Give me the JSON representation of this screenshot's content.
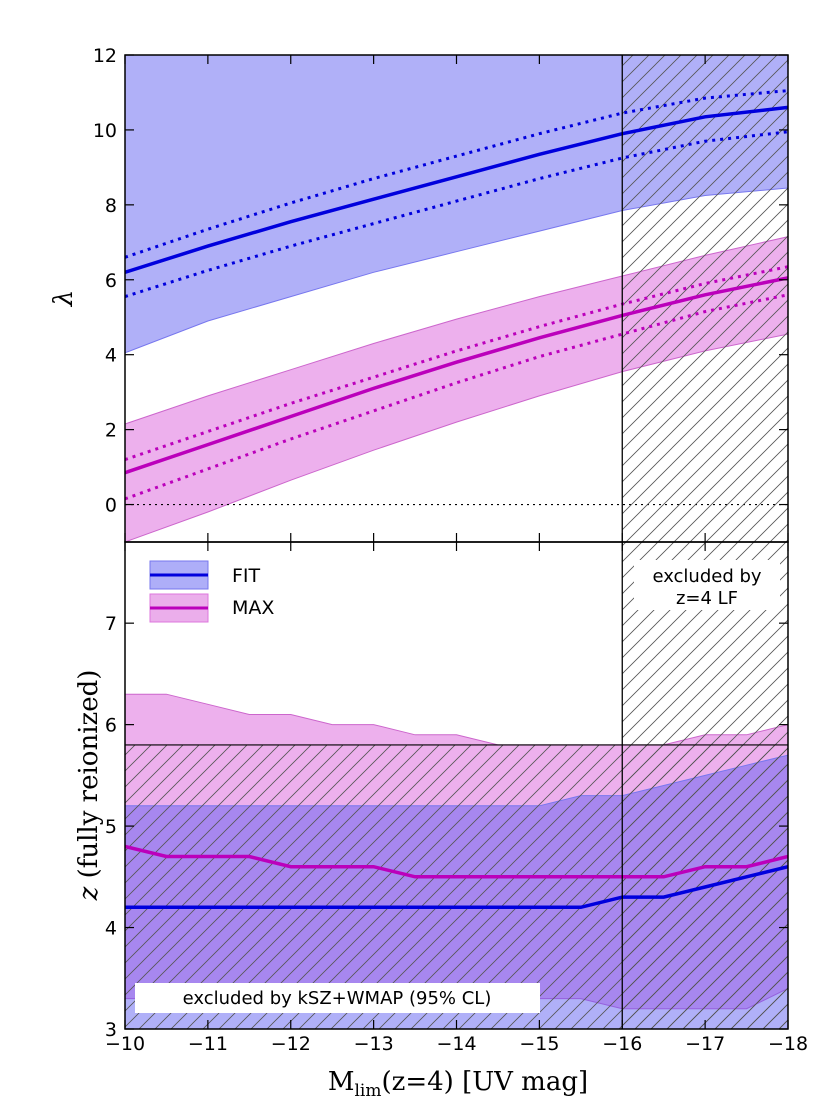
{
  "chart_data": [
    {
      "panel": "top",
      "type": "line",
      "ylabel": "λ",
      "xlim": [
        -10,
        -18
      ],
      "ylim": [
        -1,
        12
      ],
      "yticks": [
        0,
        2,
        4,
        6,
        8,
        10,
        12
      ],
      "x": [
        -10,
        -11,
        -12,
        -13,
        -14,
        -15,
        -16,
        -17,
        -18
      ],
      "series": [
        {
          "name": "FIT",
          "color": "#0000dd",
          "mean": [
            6.2,
            6.9,
            7.55,
            8.15,
            8.75,
            9.35,
            9.9,
            10.35,
            10.6
          ],
          "inner_upper": [
            6.6,
            7.35,
            8.05,
            8.7,
            9.3,
            9.9,
            10.45,
            10.85,
            11.05
          ],
          "inner_lower": [
            5.55,
            6.25,
            6.9,
            7.5,
            8.1,
            8.7,
            9.25,
            9.7,
            9.95
          ],
          "band_upper": [
            12,
            12,
            12,
            12,
            12,
            12,
            12,
            12,
            12
          ],
          "band_lower": [
            4.05,
            4.9,
            5.55,
            6.2,
            6.75,
            7.3,
            7.85,
            8.25,
            8.45
          ]
        },
        {
          "name": "MAX",
          "color": "#bb00bb",
          "mean": [
            0.85,
            1.6,
            2.35,
            3.1,
            3.8,
            4.45,
            5.05,
            5.6,
            6.05
          ],
          "inner_upper": [
            1.2,
            1.95,
            2.7,
            3.4,
            4.1,
            4.75,
            5.35,
            5.9,
            6.35
          ],
          "inner_lower": [
            0.15,
            0.95,
            1.75,
            2.5,
            3.25,
            3.95,
            4.55,
            5.15,
            5.6
          ],
          "band_upper": [
            2.15,
            2.9,
            3.6,
            4.3,
            4.95,
            5.55,
            6.1,
            6.65,
            7.15
          ],
          "band_lower": [
            -1.0,
            -0.2,
            0.65,
            1.45,
            2.2,
            2.9,
            3.55,
            4.1,
            4.55
          ]
        }
      ],
      "reference_line": {
        "y": 0,
        "style": "dotted"
      }
    },
    {
      "panel": "bottom",
      "type": "line",
      "ylabel": "z (fully reionized)",
      "xlabel": "M_lim(z=4)  [UV mag]",
      "xlim": [
        -10,
        -18
      ],
      "ylim": [
        3,
        7.8
      ],
      "yticks": [
        3,
        4,
        5,
        6,
        7
      ],
      "xticks": [
        -10,
        -11,
        -12,
        -13,
        -14,
        -15,
        -16,
        -17,
        -18
      ],
      "x": [
        -10,
        -10.5,
        -11,
        -11.5,
        -12,
        -12.5,
        -13,
        -13.5,
        -14,
        -14.5,
        -15,
        -15.5,
        -16,
        -16.5,
        -17,
        -17.5,
        -18
      ],
      "series": [
        {
          "name": "FIT",
          "color": "#0000dd",
          "mean": [
            4.2,
            4.2,
            4.2,
            4.2,
            4.2,
            4.2,
            4.2,
            4.2,
            4.2,
            4.2,
            4.2,
            4.2,
            4.3,
            4.3,
            4.4,
            4.5,
            4.6
          ],
          "band_upper": [
            5.2,
            5.2,
            5.2,
            5.2,
            5.2,
            5.2,
            5.2,
            5.2,
            5.2,
            5.2,
            5.2,
            5.3,
            5.3,
            5.4,
            5.5,
            5.6,
            5.7
          ],
          "band_lower": [
            3.0,
            3.0,
            3.0,
            3.0,
            3.0,
            3.0,
            3.0,
            3.0,
            3.0,
            3.0,
            3.0,
            3.0,
            3.0,
            3.0,
            3.0,
            3.0,
            3.0
          ]
        },
        {
          "name": "MAX",
          "color": "#bb00bb",
          "mean": [
            4.8,
            4.7,
            4.7,
            4.7,
            4.6,
            4.6,
            4.6,
            4.5,
            4.5,
            4.5,
            4.5,
            4.5,
            4.5,
            4.5,
            4.6,
            4.6,
            4.7
          ],
          "band_upper": [
            6.3,
            6.3,
            6.2,
            6.1,
            6.1,
            6.0,
            6.0,
            5.9,
            5.9,
            5.8,
            5.8,
            5.8,
            5.8,
            5.8,
            5.9,
            5.9,
            6.0
          ],
          "band_lower": [
            3.3,
            3.3,
            3.3,
            3.3,
            3.3,
            3.3,
            3.3,
            3.3,
            3.3,
            3.3,
            3.3,
            3.3,
            3.2,
            3.2,
            3.2,
            3.2,
            3.4
          ]
        }
      ],
      "legend": {
        "placement": "top-left",
        "entries": [
          "FIT",
          "MAX"
        ]
      },
      "excluded_hatch_y_below": 5.8,
      "annotations": {
        "excluded_lf": [
          "excluded by",
          "z=4 LF"
        ],
        "excluded_ksz": "excluded by kSZ+WMAP (95% CL)"
      }
    }
  ],
  "shared": {
    "excluded_x_beyond": -16,
    "xlabel_main": "M",
    "xlabel_sub": "lim",
    "xlabel_rest": "(z=4)  [UV mag]",
    "ylabel_bottom_var": "z",
    "ylabel_bottom_rest": " (fully reionized)"
  }
}
